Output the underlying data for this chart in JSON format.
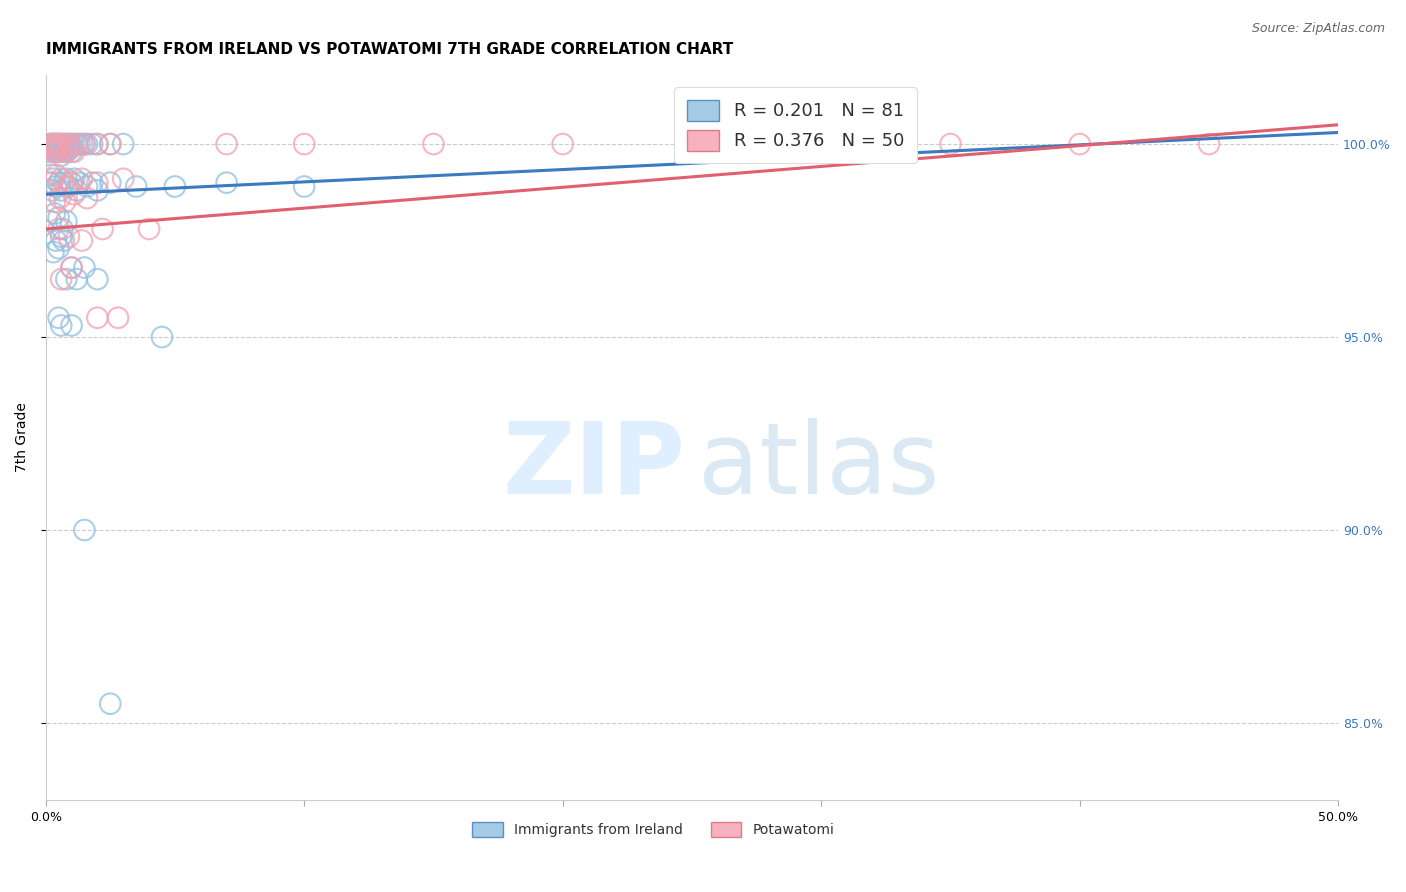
{
  "title": "IMMIGRANTS FROM IRELAND VS POTAWATOMI 7TH GRADE CORRELATION CHART",
  "source": "Source: ZipAtlas.com",
  "ylabel": "7th Grade",
  "blue_label": "Immigrants from Ireland",
  "pink_label": "Potawatomi",
  "blue_r": "R = 0.201",
  "blue_n": "N = 81",
  "pink_r": "R = 0.376",
  "pink_n": "N = 50",
  "blue_color": "#90bfdf",
  "pink_color": "#f4a0b0",
  "blue_line_color": "#3a7abf",
  "pink_line_color": "#e06070",
  "xlim": [
    0,
    50
  ],
  "ylim": [
    83,
    101.8
  ],
  "yticks": [
    85,
    90,
    95,
    100
  ],
  "xtick_labels": [
    "0.0%",
    "50.0%"
  ],
  "ytick_labels": [
    "85.0%",
    "90.0%",
    "95.0%",
    "100.0%"
  ],
  "title_fontsize": 11,
  "tick_fontsize": 9,
  "blue_scatter_x": [
    0.1,
    0.15,
    0.2,
    0.25,
    0.3,
    0.3,
    0.35,
    0.35,
    0.4,
    0.4,
    0.45,
    0.45,
    0.5,
    0.5,
    0.55,
    0.55,
    0.6,
    0.6,
    0.65,
    0.7,
    0.7,
    0.75,
    0.8,
    0.85,
    0.9,
    0.95,
    1.0,
    1.0,
    1.1,
    1.2,
    1.3,
    1.4,
    1.5,
    1.6,
    1.8,
    2.0,
    2.5,
    3.0,
    0.15,
    0.2,
    0.25,
    0.3,
    0.4,
    0.5,
    0.6,
    0.7,
    0.8,
    0.9,
    1.0,
    1.1,
    1.2,
    1.3,
    1.6,
    1.8,
    2.0,
    2.5,
    3.5,
    5.0,
    7.0,
    10.0,
    0.2,
    0.35,
    0.5,
    0.65,
    0.8,
    0.4,
    0.6,
    0.5,
    0.7,
    0.3,
    0.8,
    1.0,
    1.2,
    1.5,
    2.0,
    0.5,
    0.6,
    1.0,
    1.5,
    2.5,
    4.5
  ],
  "blue_scatter_y": [
    99.8,
    99.9,
    100.0,
    100.0,
    99.9,
    100.0,
    100.0,
    99.8,
    100.0,
    99.9,
    99.8,
    100.0,
    99.9,
    100.0,
    99.8,
    100.0,
    99.7,
    99.9,
    100.0,
    99.8,
    100.0,
    99.9,
    99.8,
    100.0,
    99.9,
    100.0,
    99.8,
    100.0,
    100.0,
    100.0,
    100.0,
    100.0,
    100.0,
    100.0,
    100.0,
    100.0,
    100.0,
    100.0,
    99.0,
    99.2,
    98.8,
    99.1,
    98.9,
    99.0,
    98.8,
    99.0,
    99.1,
    98.9,
    99.0,
    99.1,
    98.8,
    99.0,
    98.9,
    99.0,
    98.8,
    99.0,
    98.9,
    98.9,
    99.0,
    98.9,
    98.0,
    98.2,
    98.1,
    97.8,
    98.0,
    97.5,
    97.6,
    97.3,
    97.5,
    97.2,
    96.5,
    96.8,
    96.5,
    96.8,
    96.5,
    95.5,
    95.3,
    95.3,
    90.0,
    85.5,
    95.0
  ],
  "pink_scatter_x": [
    0.15,
    0.2,
    0.25,
    0.3,
    0.35,
    0.4,
    0.45,
    0.5,
    0.55,
    0.6,
    0.7,
    0.8,
    0.9,
    1.0,
    1.1,
    1.2,
    1.5,
    2.0,
    2.5,
    0.25,
    0.4,
    0.6,
    0.8,
    1.0,
    1.4,
    2.0,
    3.0,
    0.35,
    0.55,
    0.75,
    1.1,
    1.6,
    0.5,
    0.9,
    1.4,
    2.2,
    4.0,
    7.0,
    10.0,
    15.0,
    20.0,
    25.0,
    30.0,
    35.0,
    40.0,
    45.0,
    0.6,
    1.0,
    2.0,
    2.8
  ],
  "pink_scatter_y": [
    100.0,
    99.9,
    100.0,
    99.8,
    100.0,
    99.9,
    100.0,
    99.8,
    100.0,
    99.9,
    100.0,
    99.8,
    100.0,
    99.9,
    99.8,
    100.0,
    100.0,
    100.0,
    100.0,
    99.0,
    99.2,
    99.1,
    98.9,
    99.0,
    99.1,
    99.0,
    99.1,
    98.5,
    98.6,
    98.5,
    98.7,
    98.6,
    97.8,
    97.6,
    97.5,
    97.8,
    97.8,
    100.0,
    100.0,
    100.0,
    100.0,
    100.0,
    100.0,
    100.0,
    100.0,
    100.0,
    96.5,
    96.8,
    95.5,
    95.5
  ],
  "blue_trend_x": [
    0,
    50
  ],
  "blue_trend_y": [
    98.7,
    100.3
  ],
  "pink_trend_x": [
    0,
    50
  ],
  "pink_trend_y": [
    97.8,
    100.5
  ]
}
